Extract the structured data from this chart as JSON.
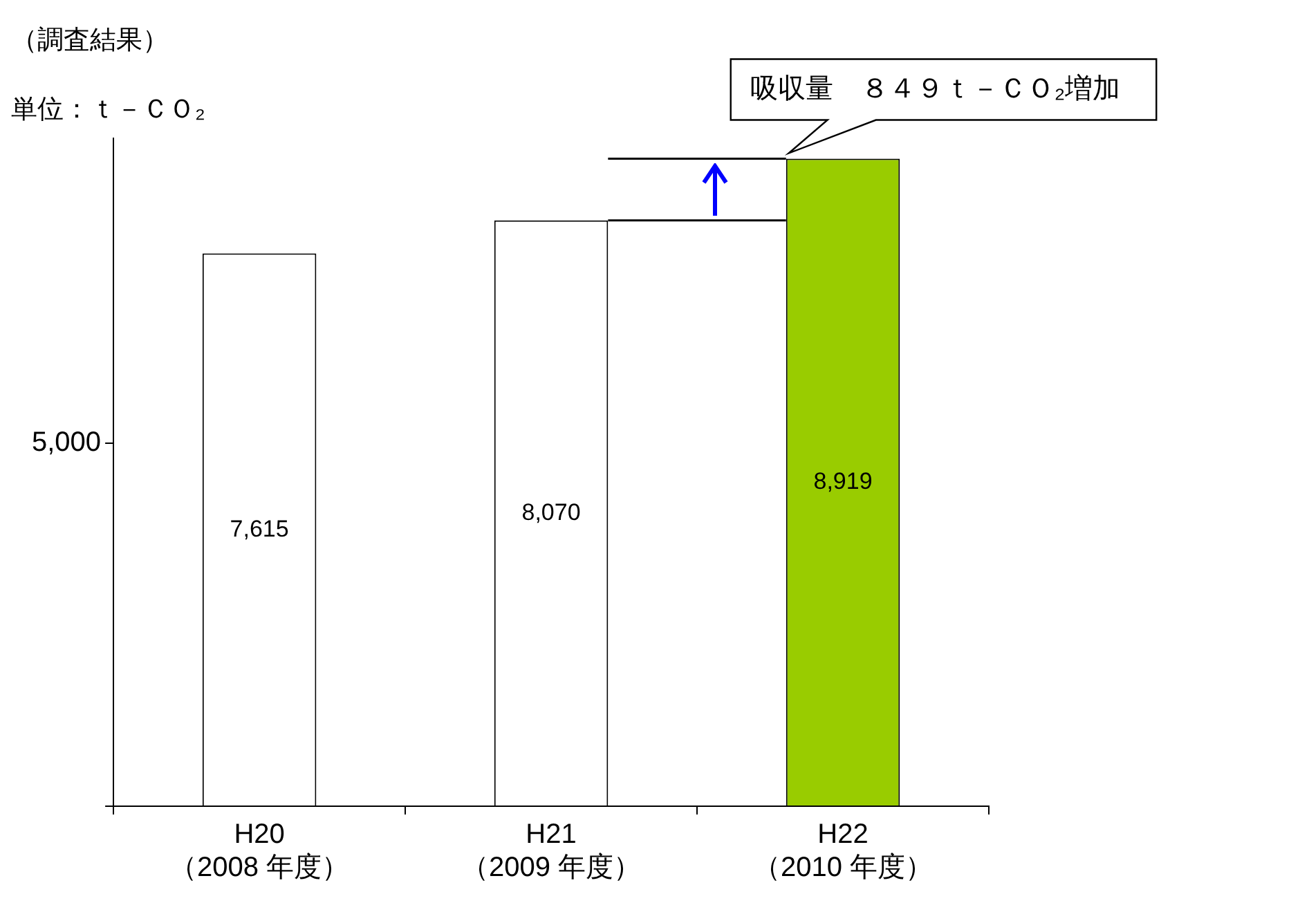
{
  "chart_data": {
    "type": "bar",
    "title": "（調査結果）",
    "ylabel": "単位：ｔ－ＣＯ₂",
    "categories": [
      "H20\n（2008 年度）",
      "H21\n（2009 年度）",
      "H22\n（2010 年度）"
    ],
    "values": [
      7615,
      8070,
      8919
    ],
    "colors": [
      "#ffffff",
      "#ffffff",
      "#99cc00"
    ],
    "ylim": [
      0,
      9200
    ],
    "yticks": [
      0,
      {
        "value": 5000,
        "label": "5,000"
      }
    ],
    "grid": false,
    "legend": false,
    "value_labels": [
      "7,615",
      "8,070",
      "8,919"
    ],
    "ref_lines": [
      {
        "axis": "y",
        "value": 8070,
        "color": "#000000"
      },
      {
        "axis": "y",
        "value": 8919,
        "color": "#000000"
      }
    ],
    "annotations": [
      {
        "text": "吸収量　８４９ｔ－ＣＯ₂増加",
        "x": "H22\n（2010 年度）",
        "y": 8919
      }
    ]
  }
}
